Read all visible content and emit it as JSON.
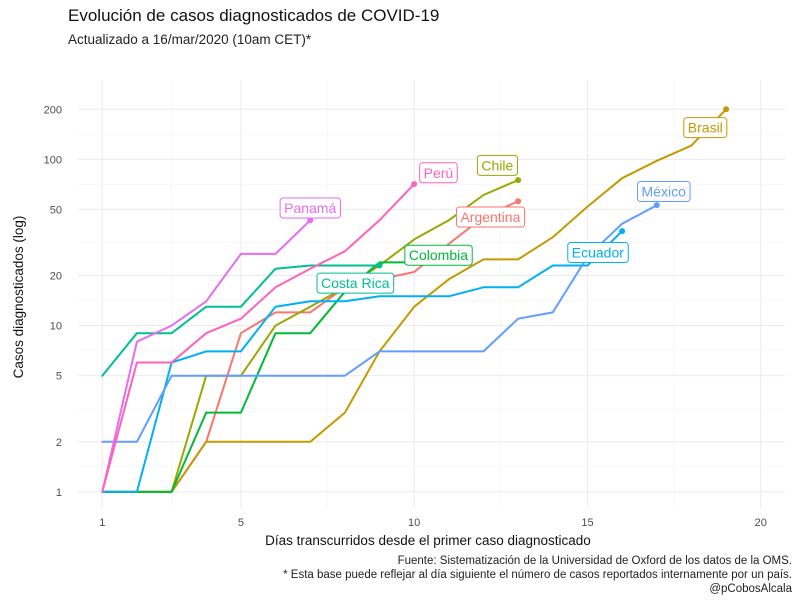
{
  "header": {
    "title": "Evolución de casos diagnosticados de COVID-19",
    "subtitle": "Actualizado a 16/mar/2020 (10am CET)*"
  },
  "caption": {
    "line1": "Fuente: Sistematización de la Universidad de Oxford de los datos de la OMS.",
    "line2": "* Esta base puede reflejar al día siguiente el número de casos reportados internamente por un país.",
    "line3": "@pCobosAlcala"
  },
  "chart_data": {
    "type": "line",
    "xlabel": "Días transcurridos desde el primer caso diagnosticado",
    "ylabel": "Casos diagnosticados (log)",
    "y_scale": "log",
    "xlim": [
      0.3,
      20.7
    ],
    "ylim": [
      0.8,
      300
    ],
    "x_ticks": [
      1,
      5,
      10,
      15,
      20
    ],
    "y_ticks": [
      1,
      2,
      5,
      10,
      20,
      50,
      100,
      200
    ],
    "grid": true,
    "legend": "none (direct labels)",
    "series": [
      {
        "name": "Argentina",
        "color": "#F8766D",
        "x": [
          1,
          2,
          3,
          4,
          5,
          6,
          7,
          8,
          9,
          10,
          11,
          12,
          13
        ],
        "y": [
          1,
          1,
          1,
          2,
          9,
          12,
          12,
          17,
          19,
          21,
          31,
          45,
          56
        ]
      },
      {
        "name": "Brasil",
        "color": "#C49A00",
        "x": [
          1,
          2,
          3,
          4,
          5,
          6,
          7,
          8,
          9,
          10,
          11,
          12,
          13,
          14,
          15,
          16,
          17,
          18,
          19
        ],
        "y": [
          1,
          1,
          1,
          2,
          2,
          2,
          2,
          3,
          7,
          13,
          19,
          25,
          25,
          34,
          52,
          77,
          98,
          121,
          200
        ]
      },
      {
        "name": "Chile",
        "color": "#99A800",
        "x": [
          1,
          2,
          3,
          4,
          5,
          6,
          7,
          8,
          9,
          10,
          11,
          12,
          13
        ],
        "y": [
          1,
          1,
          1,
          5,
          5,
          10,
          13,
          17,
          23,
          33,
          43,
          61,
          75
        ]
      },
      {
        "name": "Colombia",
        "color": "#00BA38",
        "x": [
          1,
          2,
          3,
          4,
          5,
          6,
          7,
          8,
          9,
          10
        ],
        "y": [
          1,
          1,
          1,
          3,
          3,
          9,
          9,
          16,
          24,
          24
        ]
      },
      {
        "name": "Costa Rica",
        "color": "#00BF94",
        "x": [
          1,
          2,
          3,
          4,
          5,
          6,
          7,
          8,
          9
        ],
        "y": [
          5,
          9,
          9,
          13,
          13,
          22,
          23,
          23,
          23
        ]
      },
      {
        "name": "Ecuador",
        "color": "#00B0F6",
        "x": [
          1,
          2,
          3,
          4,
          5,
          6,
          7,
          8,
          9,
          10,
          11,
          12,
          13,
          14,
          15,
          16
        ],
        "y": [
          1,
          1,
          6,
          7,
          7,
          13,
          14,
          14,
          15,
          15,
          15,
          17,
          17,
          23,
          23,
          37
        ]
      },
      {
        "name": "México",
        "color": "#619CFF",
        "x": [
          1,
          2,
          3,
          4,
          5,
          6,
          7,
          8,
          9,
          10,
          11,
          12,
          13,
          14,
          15,
          16,
          17
        ],
        "y": [
          2,
          2,
          5,
          5,
          5,
          5,
          5,
          5,
          7,
          7,
          7,
          7,
          11,
          12,
          26,
          41,
          53
        ]
      },
      {
        "name": "Panamá",
        "color": "#E76BF3",
        "x": [
          1,
          2,
          3,
          4,
          5,
          6,
          7
        ],
        "y": [
          1,
          8,
          10,
          14,
          27,
          27,
          43
        ]
      },
      {
        "name": "Perú",
        "color": "#FF62BC",
        "x": [
          1,
          2,
          3,
          4,
          5,
          6,
          7,
          8,
          9,
          10
        ],
        "y": [
          1,
          6,
          6,
          9,
          11,
          17,
          22,
          28,
          43,
          71
        ]
      }
    ],
    "labels": [
      {
        "text": "Brasil",
        "series": "Brasil",
        "x": 18.4,
        "y": 155
      },
      {
        "text": "Chile",
        "series": "Chile",
        "x": 12.4,
        "y": 92
      },
      {
        "text": "Perú",
        "series": "Perú",
        "x": 10.7,
        "y": 83
      },
      {
        "text": "México",
        "series": "México",
        "x": 17.2,
        "y": 64
      },
      {
        "text": "Panamá",
        "series": "Panamá",
        "x": 7.0,
        "y": 51
      },
      {
        "text": "Argentina",
        "series": "Argentina",
        "x": 12.2,
        "y": 45
      },
      {
        "text": "Colombia",
        "series": "Colombia",
        "x": 10.7,
        "y": 26.5
      },
      {
        "text": "Ecuador",
        "series": "Ecuador",
        "x": 15.3,
        "y": 27.5
      },
      {
        "text": "Costa Rica",
        "series": "Costa Rica",
        "x": 8.3,
        "y": 18
      }
    ]
  }
}
